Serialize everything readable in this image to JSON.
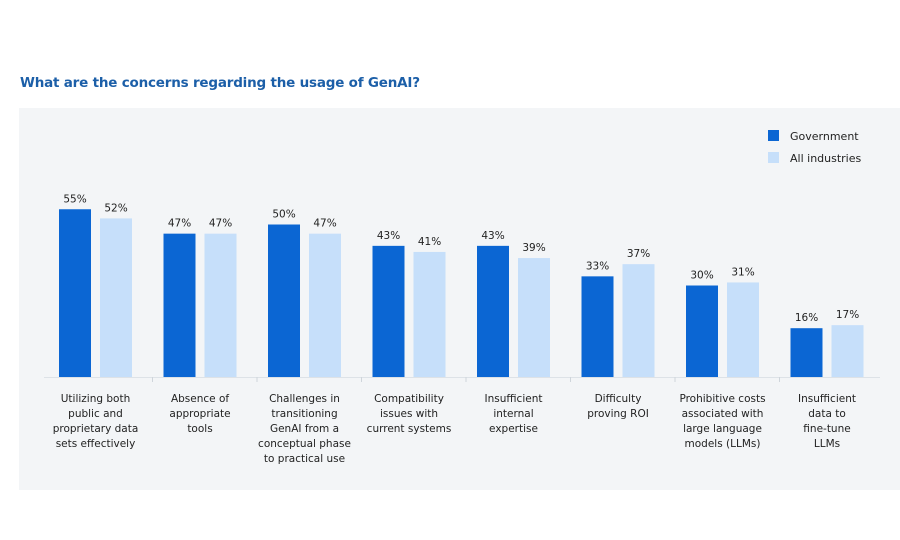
{
  "chart_data": {
    "type": "bar",
    "title": "What are the concerns regarding the usage of GenAI?",
    "categories": [
      "Utilizing both public and proprietary data sets effectively",
      "Absence of appropriate tools",
      "Challenges in transitioning GenAI from a conceptual phase to practical use",
      "Compatibility issues with current systems",
      "Insufficient internal expertise",
      "Difficulty proving ROI",
      "Prohibitive costs associated with large language models (LLMs)",
      "Insufficient data to fine-tune LLMs"
    ],
    "category_lines": [
      [
        "Utilizing both",
        "public and",
        "proprietary data",
        "sets effectively"
      ],
      [
        "Absence of",
        "appropriate",
        "tools"
      ],
      [
        "Challenges in",
        "transitioning",
        "GenAI from a",
        "conceptual phase",
        "to practical use"
      ],
      [
        "Compatibility",
        "issues with",
        "current systems"
      ],
      [
        "Insufficient",
        "internal",
        "expertise"
      ],
      [
        "Difficulty",
        "proving ROI"
      ],
      [
        "Prohibitive costs",
        "associated with",
        "large language",
        "models (LLMs)"
      ],
      [
        "Insufficient",
        "data to",
        "fine-tune",
        "LLMs"
      ]
    ],
    "series": [
      {
        "name": "Government",
        "values": [
          55,
          47,
          50,
          43,
          43,
          33,
          30,
          16
        ],
        "color": "#0b66d3"
      },
      {
        "name": "All industries",
        "values": [
          52,
          47,
          47,
          41,
          39,
          37,
          31,
          17
        ],
        "color": "#c6dffa"
      }
    ],
    "value_suffix": "%",
    "ylim": [
      0,
      60
    ],
    "grid": false,
    "legend": "top-right",
    "xlabel": "",
    "ylabel": ""
  }
}
